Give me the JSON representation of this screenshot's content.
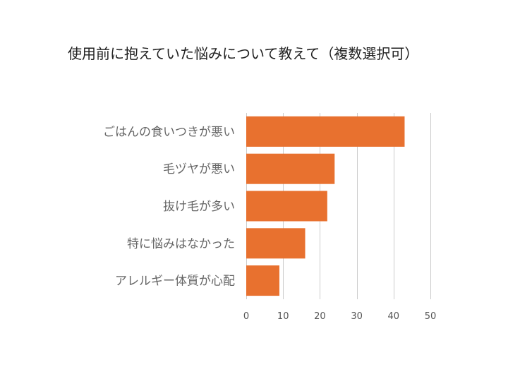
{
  "chart_data": {
    "type": "bar",
    "orientation": "horizontal",
    "title": "使用前に抱えていた悩みについて教えて（複数選択可）",
    "categories": [
      "ごはんの食いつきが悪い",
      "毛ヅヤが悪い",
      "抜け毛が多い",
      "特に悩みはなかった",
      "アレルギー体質が心配"
    ],
    "values": [
      43,
      24,
      22,
      16,
      9
    ],
    "xlim": [
      0,
      50
    ],
    "xticks": [
      0,
      10,
      20,
      30,
      40,
      50
    ],
    "grid": true,
    "bar_color": "#E8712F"
  }
}
